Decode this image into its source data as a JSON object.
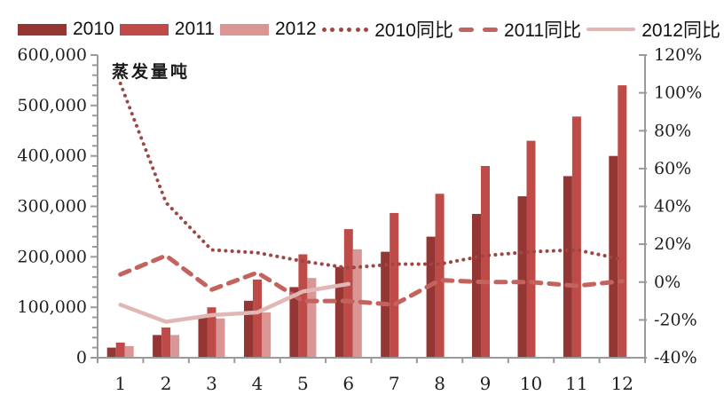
{
  "legend": {
    "items": [
      {
        "label": "2010",
        "swatch": "bar",
        "color": "#943634"
      },
      {
        "label": "2011",
        "swatch": "bar",
        "color": "#BE4B48"
      },
      {
        "label": "2012",
        "swatch": "bar",
        "color": "#D99694"
      },
      {
        "label": "2010同比",
        "swatch": "dotted",
        "color": "#9E4643"
      },
      {
        "label": "2011同比",
        "swatch": "dashed",
        "color": "#C4625E"
      },
      {
        "label": "2012同比",
        "swatch": "solid",
        "color": "#E0B7B4"
      }
    ]
  },
  "chart_data": {
    "type": "combo bar+line",
    "inner_title": "蒸发量吨",
    "categories": [
      "1",
      "2",
      "3",
      "4",
      "5",
      "6",
      "7",
      "8",
      "9",
      "10",
      "11",
      "12"
    ],
    "bar_series": [
      {
        "name": "2010",
        "color": "#943634",
        "values": [
          20000,
          45000,
          80000,
          113000,
          140000,
          180000,
          210000,
          240000,
          285000,
          320000,
          360000,
          400000
        ]
      },
      {
        "name": "2011",
        "color": "#BE4B48",
        "values": [
          30000,
          60000,
          100000,
          155000,
          205000,
          255000,
          287000,
          325000,
          380000,
          430000,
          478000,
          540000
        ]
      },
      {
        "name": "2012",
        "color": "#D99694",
        "values": [
          23000,
          45000,
          78000,
          90000,
          158000,
          215000
        ]
      }
    ],
    "line_series": [
      {
        "name": "2010同比",
        "style": "dotted",
        "color": "#9E4643",
        "values_pct": [
          105,
          42,
          17,
          15.5,
          11,
          7.5,
          9.5,
          9.5,
          14,
          16,
          17,
          12
        ]
      },
      {
        "name": "2011同比",
        "style": "dashed",
        "color": "#C4625E",
        "values_pct": [
          4,
          14,
          -4,
          5,
          -10,
          -10,
          -12,
          1,
          0,
          0,
          -2,
          0.5
        ]
      },
      {
        "name": "2012同比",
        "style": "solid",
        "color": "#E0B7B4",
        "values_pct": [
          -12,
          -21,
          -17.5,
          -16,
          -5,
          -1
        ]
      }
    ],
    "left_axis": {
      "min": 0,
      "max": 600000,
      "major_step": 100000,
      "minor_step": 20000,
      "tick_labels": [
        "0",
        "100,000",
        "200,000",
        "300,000",
        "400,000",
        "500,000",
        "600,000"
      ]
    },
    "right_axis": {
      "min": -40,
      "max": 120,
      "major_step": 20,
      "tick_labels": [
        "-40%",
        "-20%",
        "0%",
        "20%",
        "40%",
        "60%",
        "80%",
        "100%",
        "120%"
      ]
    },
    "axis_color": "#9a9a9a",
    "label_color": "#1f1f1f",
    "legend_position": "top",
    "grid": false
  }
}
